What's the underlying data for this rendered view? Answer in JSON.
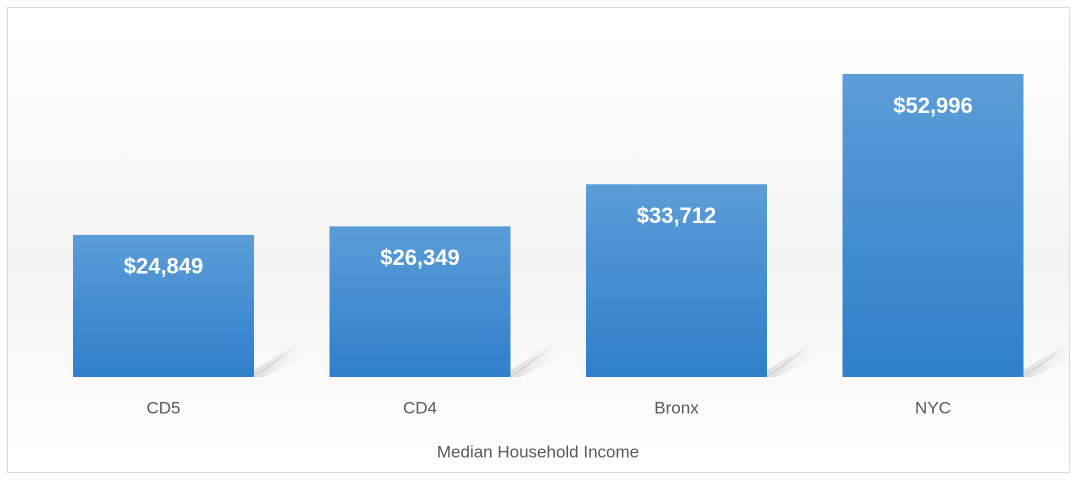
{
  "chart_data": {
    "type": "bar",
    "categories": [
      "CD5",
      "CD4",
      "Bronx",
      "NYC"
    ],
    "values": [
      24849,
      26349,
      33712,
      52996
    ],
    "value_labels": [
      "$24,849",
      "$26,349",
      "$33,712",
      "$52,996"
    ],
    "x_label": "Median Household Income",
    "color": "#4a90d4"
  }
}
